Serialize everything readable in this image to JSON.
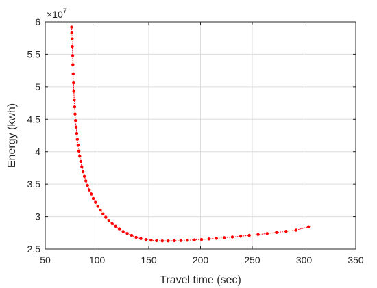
{
  "chart_data": {
    "type": "scatter",
    "xlabel": "Travel time (sec)",
    "ylabel": "Energy (kwh)",
    "y_multiplier_label": "×10",
    "y_multiplier_exponent": "7",
    "xlim": [
      50,
      350
    ],
    "ylim": [
      2.5,
      6.0
    ],
    "xticks": [
      "50",
      "100",
      "150",
      "200",
      "250",
      "300",
      "350"
    ],
    "yticks": [
      "2.5",
      "3",
      "3.5",
      "4",
      "4.5",
      "5",
      "5.5",
      "6"
    ],
    "grid": true,
    "series": [
      {
        "color": "#ff0000",
        "marker": "dot",
        "line": "dotted",
        "x": [
          75.5,
          75.7,
          76.0,
          76.2,
          76.5,
          76.7,
          77.0,
          77.3,
          77.6,
          78.0,
          78.4,
          78.8,
          79.3,
          79.8,
          80.4,
          81.0,
          81.7,
          82.5,
          83.3,
          84.3,
          85.3,
          86.5,
          87.8,
          89.2,
          90.8,
          92.5,
          94.4,
          96.4,
          98.5,
          100.8,
          103.2,
          105.8,
          108.5,
          111.5,
          114.7,
          118.0,
          121.5,
          125.3,
          129.2,
          133.4,
          137.8,
          142.4,
          147.2,
          152.3,
          157.6,
          163.1,
          168.8,
          174.8,
          181.0,
          187.4,
          194.1,
          201.0,
          208.1,
          215.4,
          223.0,
          230.8,
          238.8,
          247.1,
          255.6,
          264.4,
          273.4,
          282.7,
          292.3,
          304.4
        ],
        "y": [
          5.92,
          5.83,
          5.74,
          5.62,
          5.48,
          5.34,
          5.2,
          5.06,
          4.93,
          4.8,
          4.69,
          4.58,
          4.48,
          4.38,
          4.28,
          4.19,
          4.1,
          4.01,
          3.93,
          3.85,
          3.77,
          3.69,
          3.62,
          3.55,
          3.48,
          3.41,
          3.35,
          3.28,
          3.22,
          3.16,
          3.1,
          3.04,
          2.99,
          2.94,
          2.89,
          2.85,
          2.81,
          2.77,
          2.74,
          2.71,
          2.68,
          2.66,
          2.645,
          2.635,
          2.628,
          2.625,
          2.625,
          2.627,
          2.63,
          2.634,
          2.64,
          2.647,
          2.655,
          2.664,
          2.674,
          2.685,
          2.697,
          2.71,
          2.724,
          2.739,
          2.755,
          2.772,
          2.79,
          2.84
        ]
      }
    ]
  }
}
